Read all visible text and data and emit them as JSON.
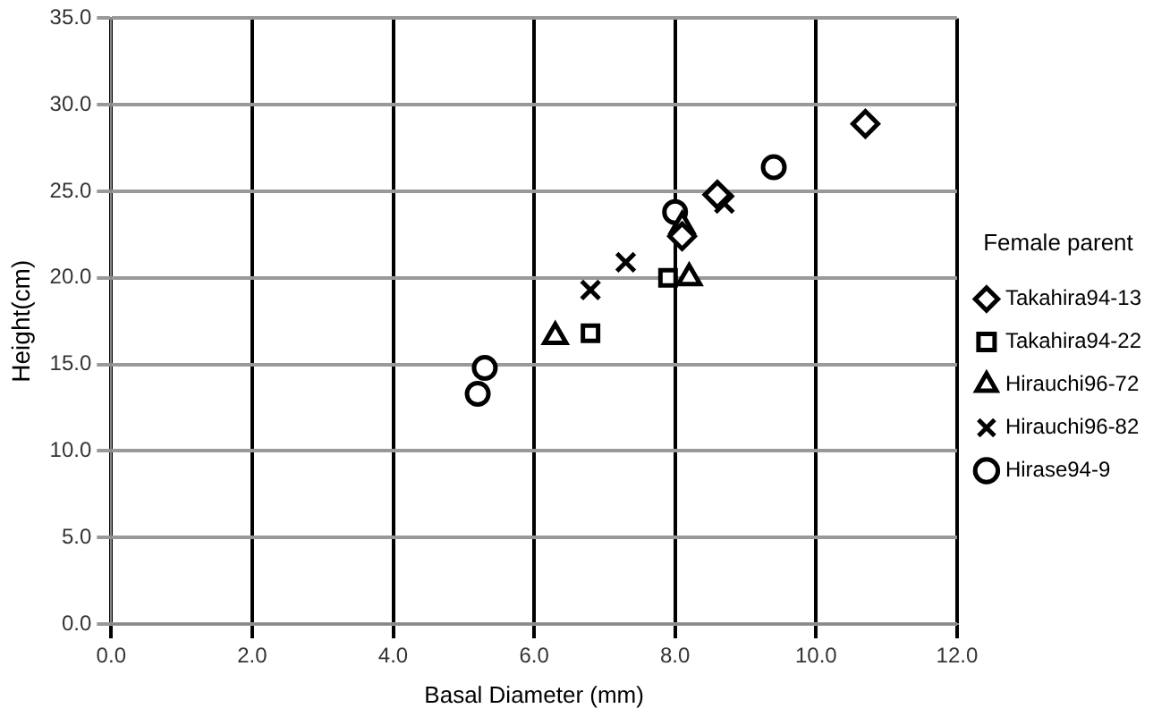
{
  "chart_data": {
    "type": "scatter",
    "xlabel": "Basal Diameter (mm)",
    "ylabel": "Height(cm)",
    "legend_title": "Female parent",
    "legend": "right",
    "grid": true,
    "xlim": [
      0,
      12
    ],
    "xticks": [
      {
        "value": 0,
        "label": "0.0"
      },
      {
        "value": 2,
        "label": "2.0"
      },
      {
        "value": 4,
        "label": "4.0"
      },
      {
        "value": 6,
        "label": "6.0"
      },
      {
        "value": 8,
        "label": "8.0"
      },
      {
        "value": 10,
        "label": "10.0"
      },
      {
        "value": 12,
        "label": "12.0"
      }
    ],
    "ylim": [
      0,
      35
    ],
    "yticks": [
      {
        "value": 0,
        "label": "0.0"
      },
      {
        "value": 5,
        "label": "5.0"
      },
      {
        "value": 10,
        "label": "10.0"
      },
      {
        "value": 15,
        "label": "15.0"
      },
      {
        "value": 20,
        "label": "20.0"
      },
      {
        "value": 25,
        "label": "25.0"
      },
      {
        "value": 30,
        "label": "30.0"
      },
      {
        "value": 35,
        "label": "35.0"
      }
    ],
    "series": [
      {
        "name": "Takahira94-13",
        "color": "#000000",
        "marker": "diamond",
        "x": [
          8.1,
          8.6,
          10.7
        ],
        "values": [
          22.4,
          24.8,
          28.9
        ]
      },
      {
        "name": "Takahira94-22",
        "color": "#000000",
        "marker": "square",
        "x": [
          6.8,
          7.9
        ],
        "values": [
          16.8,
          20.0
        ]
      },
      {
        "name": "Hirauchi96-72",
        "color": "#000000",
        "marker": "triangle",
        "x": [
          6.3,
          8.2,
          8.1
        ],
        "values": [
          16.6,
          20.0,
          23.0
        ]
      },
      {
        "name": "Hirauchi96-82",
        "color": "#000000",
        "marker": "cross",
        "x": [
          6.8,
          7.3,
          8.7
        ],
        "values": [
          19.3,
          20.9,
          24.3
        ]
      },
      {
        "name": "Hirase94-9",
        "color": "#000000",
        "marker": "circle",
        "x": [
          5.2,
          5.3,
          8.0,
          9.4
        ],
        "values": [
          13.3,
          14.8,
          23.8,
          26.4
        ]
      }
    ]
  }
}
